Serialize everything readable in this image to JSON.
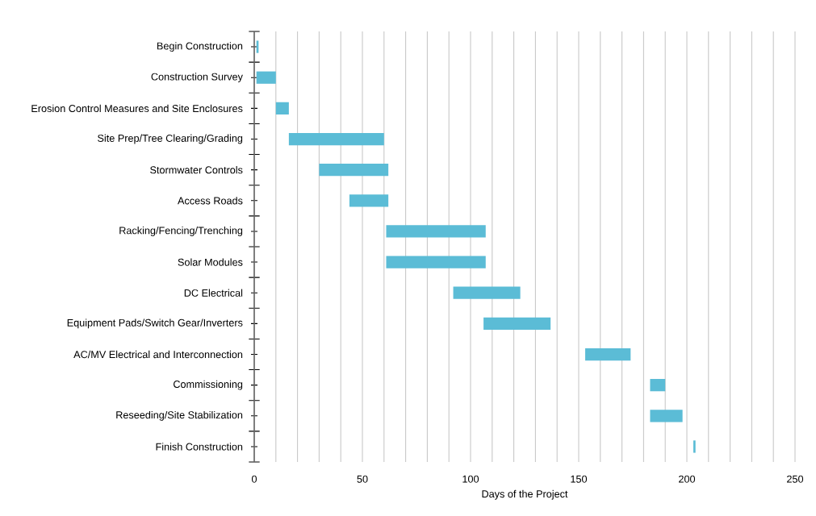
{
  "chart_data": {
    "type": "bar",
    "orientation": "horizontal",
    "xlabel": "Days of the Project",
    "categories": [
      "Begin Construction",
      "Construction Survey",
      "Erosion Control Measures and Site Enclosures",
      "Site Prep/Tree Clearing/Grading",
      "Stormwater Controls",
      "Access Roads",
      "Racking/Fencing/Trenching",
      "Solar Modules",
      "DC Electrical",
      "Equipment Pads/Switch Gear/Inverters",
      "AC/MV Electrical and Interconnection",
      "Commissioning",
      "Reseeding/Site Stabilization",
      "Finish Construction"
    ],
    "base": [
      1,
      1,
      10,
      16,
      30,
      44,
      61,
      61,
      92,
      106,
      153,
      183,
      183,
      203
    ],
    "values": [
      1,
      9,
      6,
      44,
      32,
      18,
      46,
      46,
      31,
      31,
      21,
      7,
      15,
      1
    ],
    "color": "#5bbcd6",
    "xlim": [
      0,
      250
    ],
    "xticks": [
      0,
      {
        "value": 10,
        "label": null
      },
      {
        "value": 20,
        "label": null
      },
      {
        "value": 30,
        "label": null
      },
      {
        "value": 40,
        "label": null
      },
      50,
      {
        "value": 60,
        "label": null
      },
      {
        "value": 70,
        "label": null
      },
      {
        "value": 80,
        "label": null
      },
      {
        "value": 90,
        "label": null
      },
      100,
      {
        "value": 110,
        "label": null
      },
      {
        "value": 120,
        "label": null
      },
      {
        "value": 130,
        "label": null
      },
      {
        "value": 140,
        "label": null
      },
      150,
      {
        "value": 160,
        "label": null
      },
      {
        "value": 170,
        "label": null
      },
      {
        "value": 180,
        "label": null
      },
      {
        "value": 190,
        "label": null
      },
      200,
      {
        "value": 210,
        "label": null
      },
      {
        "value": 220,
        "label": null
      },
      {
        "value": 230,
        "label": null
      },
      {
        "value": 240,
        "label": null
      },
      250
    ],
    "grid": "x"
  }
}
